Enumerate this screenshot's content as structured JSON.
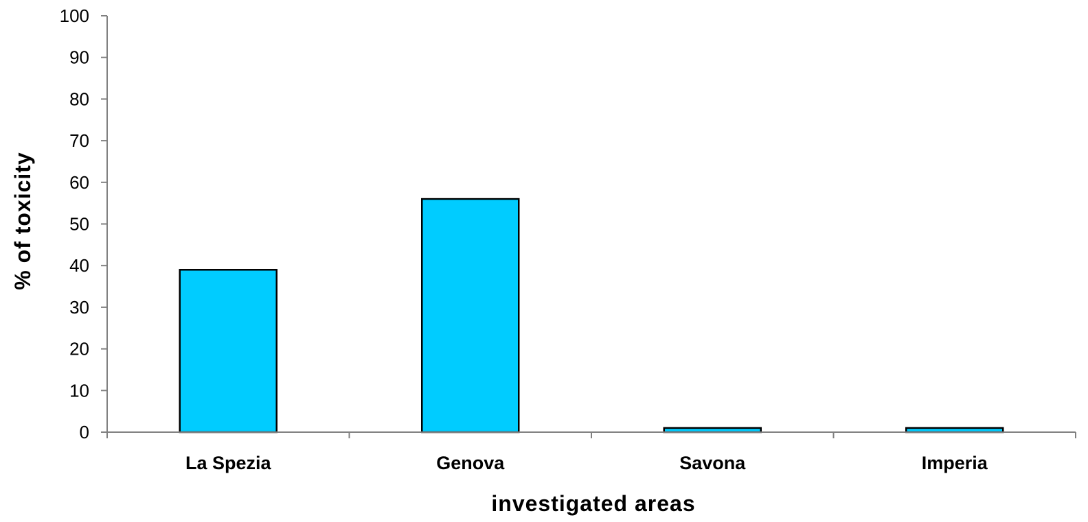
{
  "chart_data": {
    "type": "bar",
    "categories": [
      "La Spezia",
      "Genova",
      "Savona",
      "Imperia"
    ],
    "values": [
      39,
      56,
      1,
      1
    ],
    "xlabel": "investigated areas",
    "ylabel": "% of toxicity",
    "ylim": [
      0,
      100
    ],
    "yticks": [
      0,
      10,
      20,
      30,
      40,
      50,
      60,
      70,
      80,
      90,
      100
    ],
    "grid": false,
    "legend": "none",
    "bar_color": "#00CCFF",
    "bar_edge_color": "#000000"
  }
}
